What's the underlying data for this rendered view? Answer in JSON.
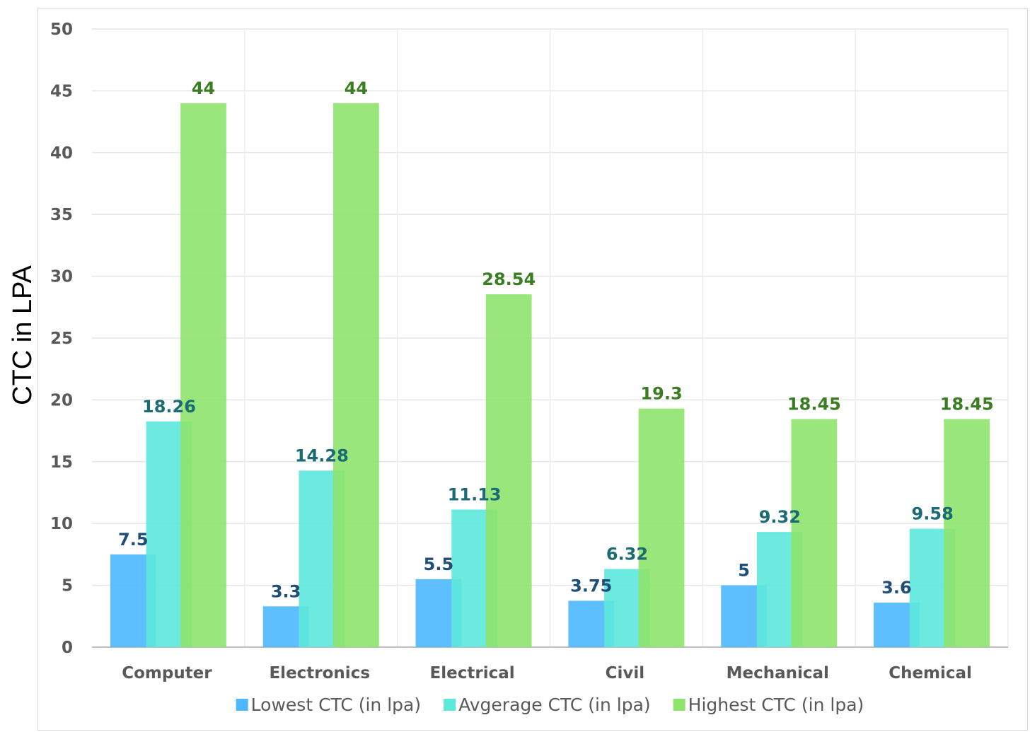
{
  "chart_data": {
    "type": "bar",
    "title": "",
    "xlabel": "",
    "ylabel": "CTC in LPA",
    "ylim": [
      0,
      50
    ],
    "yticks": [
      "0",
      "5",
      "10",
      "15",
      "20",
      "25",
      "30",
      "35",
      "40",
      "45",
      "50"
    ],
    "grid": true,
    "legend_position": "bottom",
    "categories": [
      "Computer",
      "Electronics",
      "Electrical",
      "Civil",
      "Mechanical",
      "Chemical"
    ],
    "series": [
      {
        "name": "Lowest CTC (in lpa)",
        "color": "#4db8ff",
        "label_color": "#1f4e79",
        "values": [
          7.5,
          3.3,
          5.5,
          3.75,
          5,
          3.6
        ],
        "labels": [
          "7.5",
          "3.3",
          "5.5",
          "3.75",
          "5",
          "3.6"
        ]
      },
      {
        "name": "Avgerage CTC (in lpa)",
        "color": "#5de8dc",
        "label_color": "#1a6b73",
        "values": [
          18.26,
          14.28,
          11.13,
          6.32,
          9.32,
          9.58
        ],
        "labels": [
          "18.26",
          "14.28",
          "11.13",
          "6.32",
          "9.32",
          "9.58"
        ]
      },
      {
        "name": "Highest CTC (in lpa)",
        "color": "#8ee36d",
        "label_color": "#3a7d22",
        "values": [
          44,
          44,
          28.54,
          19.3,
          18.45,
          18.45
        ],
        "labels": [
          "44",
          "44",
          "28.54",
          "19.3",
          "18.45",
          "18.45"
        ]
      }
    ]
  }
}
